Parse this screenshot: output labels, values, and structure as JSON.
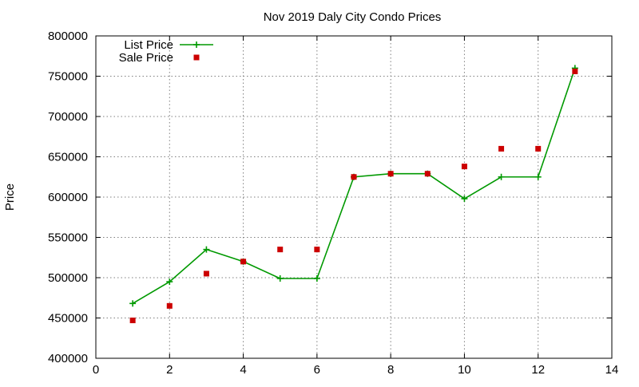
{
  "chart_data": {
    "type": "line",
    "title": "Nov 2019 Daly City Condo Prices",
    "xlabel": "",
    "ylabel": "Price",
    "xlim": [
      0,
      14
    ],
    "ylim": [
      400000,
      800000
    ],
    "x_ticks": [
      0,
      2,
      4,
      6,
      8,
      10,
      12,
      14
    ],
    "y_ticks": [
      400000,
      450000,
      500000,
      550000,
      600000,
      650000,
      700000,
      750000,
      800000
    ],
    "grid": true,
    "legend_position": "top-left",
    "x": [
      1,
      2,
      3,
      4,
      5,
      6,
      7,
      8,
      9,
      10,
      11,
      12,
      13
    ],
    "series": [
      {
        "name": "List Price",
        "style": "linespoints",
        "marker": "plus",
        "color": "#009900",
        "values": [
          468000,
          495000,
          535000,
          520000,
          499000,
          499000,
          625000,
          629000,
          629000,
          598000,
          625000,
          625000,
          760000
        ]
      },
      {
        "name": "Sale Price",
        "style": "points",
        "marker": "square",
        "color": "#cc0000",
        "values": [
          447000,
          465000,
          505000,
          520000,
          535000,
          535000,
          625000,
          629000,
          629000,
          638000,
          660000,
          660000,
          756000
        ]
      }
    ]
  }
}
